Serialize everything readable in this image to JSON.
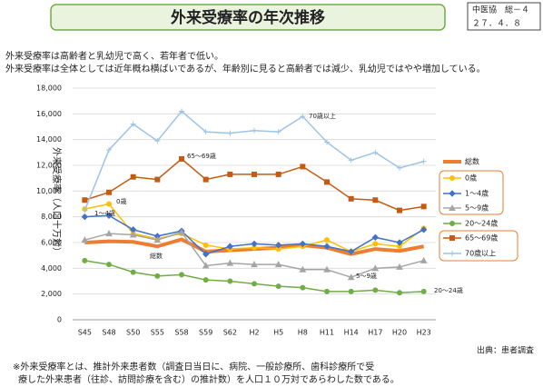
{
  "header": {
    "title": "外来受療率の年次推移",
    "tag": [
      "中医協　総－４",
      "２７．４．８"
    ]
  },
  "notes": [
    "外来受療率は高齢者と乳幼児で高く、若年者で低い。",
    "外来受療率は全体としては近年概ね横ばいであるが、年齢別に見ると高齢者では減少、乳幼児ではやや増加している。"
  ],
  "chart_data": {
    "type": "line",
    "y_label": "外来受療率（人口十万対）",
    "categories": [
      "S45",
      "S48",
      "S50",
      "S55",
      "S58",
      "S59",
      "S62",
      "H2",
      "H5",
      "H8",
      "H11",
      "H14",
      "H17",
      "H20",
      "H23"
    ],
    "ylim": [
      0,
      18000
    ],
    "yticks": [
      0,
      {
        "value": 2000,
        "label": "2,000"
      },
      {
        "value": 4000,
        "label": "4,000"
      },
      {
        "value": 6000,
        "label": "6,000"
      },
      {
        "value": 8000,
        "label": "8,000"
      },
      {
        "value": 10000,
        "label": "10,000"
      },
      {
        "value": 12000,
        "label": "12,000"
      },
      {
        "value": 14000,
        "label": "14,000"
      },
      {
        "value": 16000,
        "label": "16,000"
      },
      {
        "value": 18000,
        "label": "18,000"
      }
    ],
    "grid": true,
    "legend": "right",
    "series": [
      {
        "name": "総数",
        "color": "#ed7d31",
        "marker": "none",
        "width": 4,
        "values": [
          6000,
          6100,
          6050,
          5700,
          6250,
          5300,
          5400,
          5500,
          5600,
          5800,
          5600,
          5100,
          5500,
          5350,
          5700
        ]
      },
      {
        "name": "0歳",
        "color": "#ffc000",
        "marker": "circle",
        "width": 1.5,
        "values": [
          8600,
          9000,
          6700,
          6300,
          6700,
          5800,
          5500,
          5600,
          5500,
          5700,
          6200,
          5300,
          5900,
          5700,
          7100
        ]
      },
      {
        "name": "1～4歳",
        "color": "#4472c4",
        "marker": "diamond",
        "width": 1.5,
        "values": [
          8000,
          8100,
          7000,
          6500,
          6900,
          5100,
          5700,
          5900,
          5800,
          5900,
          5700,
          5300,
          6400,
          6000,
          7000
        ]
      },
      {
        "name": "5～9歳",
        "color": "#a5a5a5",
        "marker": "triangle",
        "width": 1.5,
        "values": [
          6200,
          6700,
          6600,
          6200,
          6800,
          4200,
          4400,
          4300,
          4300,
          3900,
          3900,
          3300,
          4000,
          4100,
          4600
        ]
      },
      {
        "name": "20～24歳",
        "color": "#70ad47",
        "marker": "circle",
        "width": 1.5,
        "values": [
          4600,
          4300,
          3700,
          3400,
          3500,
          3100,
          3000,
          2800,
          2600,
          2500,
          2200,
          2200,
          2300,
          2100,
          2200
        ]
      },
      {
        "name": "65～69歳",
        "color": "#c55a11",
        "marker": "square",
        "width": 1.5,
        "values": [
          9300,
          9900,
          11100,
          10900,
          12500,
          10900,
          11300,
          11300,
          11300,
          11900,
          10700,
          9400,
          9300,
          8500,
          8800
        ]
      },
      {
        "name": "70歳以上",
        "color": "#9dc3e6",
        "marker": "plus",
        "width": 1.5,
        "values": [
          8500,
          13200,
          15200,
          13900,
          16200,
          14600,
          14500,
          14700,
          14600,
          15800,
          13800,
          12400,
          13000,
          11800,
          12300
        ]
      }
    ],
    "annotations": [
      "70歳以上",
      "65～69歳",
      "0歳",
      "1～4歳",
      "総数",
      "5～9歳",
      "20～24歳"
    ]
  },
  "source": "出典：患者調査",
  "footnote": [
    "※外来受療率とは、推計外来患者数（調査日当日に、病院、一般診療所、歯科診療所で受",
    "療した外来患者（往診、訪問診療を含む）の推計数）を人口１０万対であらわした数である。"
  ]
}
